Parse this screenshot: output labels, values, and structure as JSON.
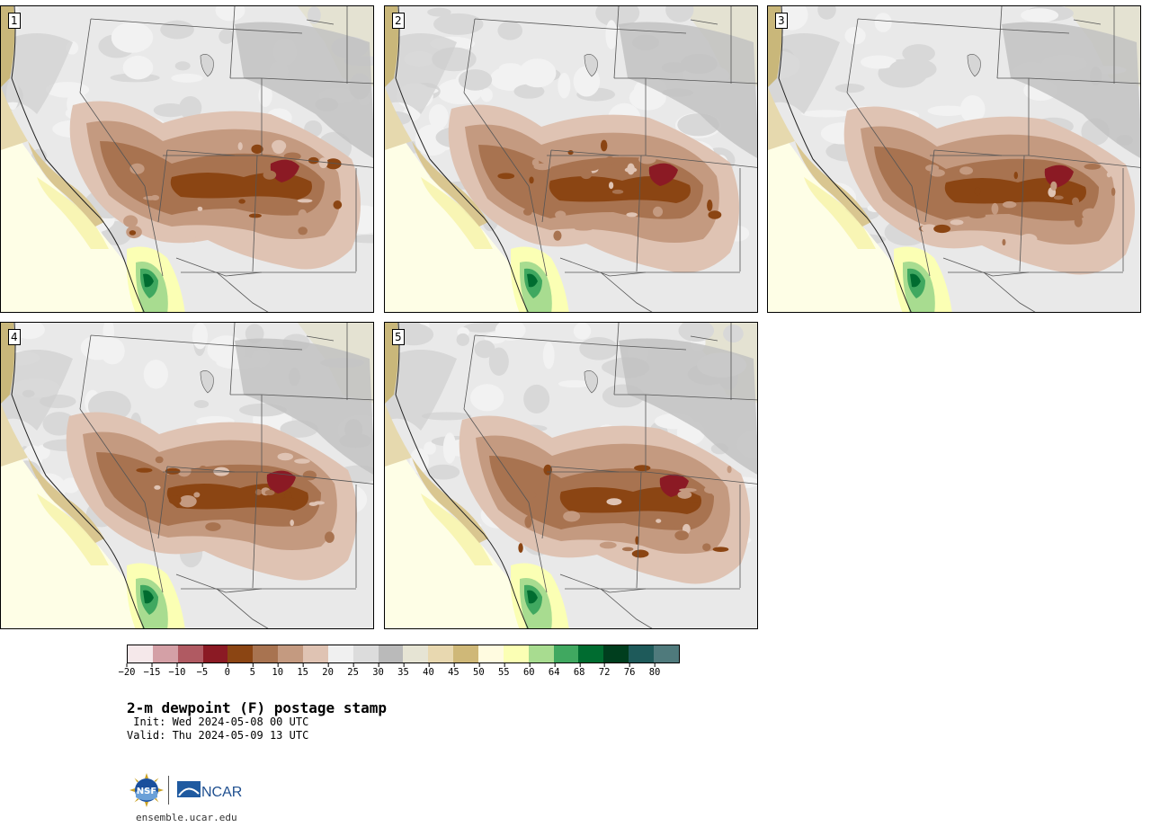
{
  "figure": {
    "title": "2-m dewpoint (F) postage stamp",
    "init": " Init: Wed 2024-05-08 00 UTC",
    "valid": "Valid: Thu 2024-05-09 13 UTC",
    "url": "ensemble.ucar.edu"
  },
  "panels": [
    {
      "member": "1"
    },
    {
      "member": "2"
    },
    {
      "member": "3"
    },
    {
      "member": "4"
    },
    {
      "member": "5"
    }
  ],
  "colorbar": {
    "ticks": [
      "−20",
      "−15",
      "−10",
      "−5",
      "0",
      "5",
      "10",
      "15",
      "20",
      "25",
      "30",
      "35",
      "40",
      "45",
      "50",
      "55",
      "60",
      "64",
      "68",
      "72",
      "76",
      "80"
    ],
    "colors": [
      "#f5e8ea",
      "#d4a0a6",
      "#b05a62",
      "#8b1a24",
      "#8b4513",
      "#a87350",
      "#c49a80",
      "#dfc3b3",
      "#f0f0f0",
      "#dcdcdc",
      "#bababa",
      "#e6e4d4",
      "#e8d8b0",
      "#cfb878",
      "#fffbe0",
      "#fbffb4",
      "#a8dc90",
      "#40a860",
      "#006c30",
      "#003e1e",
      "#1e5a5a",
      "#4f7a7c"
    ]
  },
  "logos": {
    "nsf": "NSF",
    "ncar": "NCAR"
  }
}
